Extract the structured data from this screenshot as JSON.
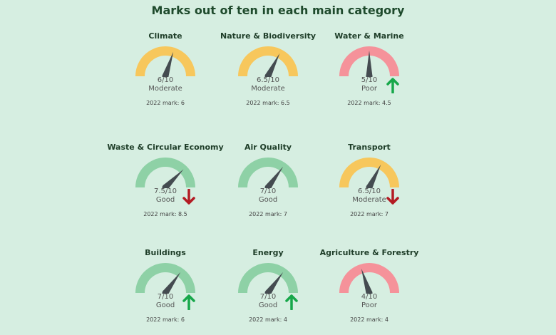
{
  "title": "Marks out of ten in each main category",
  "colors": {
    "Moderate": "#f7c75c",
    "Poor": "#f5929a",
    "Good": "#8ed1a6",
    "needle": "#444b50",
    "up": "#17a74a",
    "down": "#b31b23",
    "background": "#d6eee1"
  },
  "chart_data": {
    "type": "gauge",
    "scale": [
      0,
      10
    ],
    "items": [
      {
        "name": "Climate",
        "value": 6,
        "label": "6/10",
        "status": "Moderate",
        "previous": "2022 mark: 6",
        "trend": "none"
      },
      {
        "name": "Nature & Biodiversity",
        "value": 6.5,
        "label": "6.5/10",
        "status": "Moderate",
        "previous": "2022 mark: 6.5",
        "trend": "none"
      },
      {
        "name": "Water & Marine",
        "value": 5,
        "label": "5/10",
        "status": "Poor",
        "previous": "2022 mark: 4.5",
        "trend": "up"
      },
      {
        "name": "Waste & Circular Economy",
        "value": 7.5,
        "label": "7.5/10",
        "status": "Good",
        "previous": "2022 mark: 8.5",
        "trend": "down"
      },
      {
        "name": "Air Quality",
        "value": 7,
        "label": "7/10",
        "status": "Good",
        "previous": "2022 mark: 7",
        "trend": "none"
      },
      {
        "name": "Transport",
        "value": 6.5,
        "label": "6.5/10",
        "status": "Moderate",
        "previous": "2022 mark: 7",
        "trend": "down"
      },
      {
        "name": "Buildings",
        "value": 7,
        "label": "7/10",
        "status": "Good",
        "previous": "2022 mark: 6",
        "trend": "up"
      },
      {
        "name": "Energy",
        "value": 7,
        "label": "7/10",
        "status": "Good",
        "previous": "2022 mark: 4",
        "trend": "up"
      },
      {
        "name": "Agriculture & Forestry",
        "value": 4,
        "label": "4/10",
        "status": "Poor",
        "previous": "2022 mark: 4",
        "trend": "none"
      }
    ]
  }
}
